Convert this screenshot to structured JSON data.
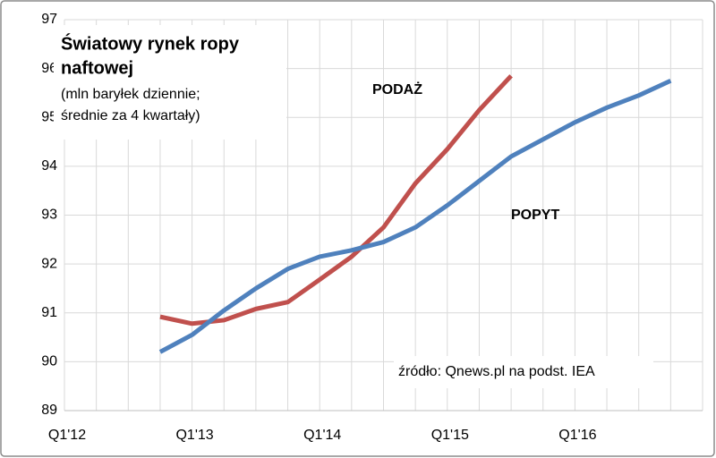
{
  "chart_data": {
    "type": "line",
    "title": [
      "Światowy rynek ropy",
      "naftowej"
    ],
    "subtitle": [
      "(mln baryłek dziennie;",
      "średnie za 4 kwartały)"
    ],
    "annotations": [
      "PODAŻ",
      "POPYT",
      "źródło: Qnews.pl na podst. IEA"
    ],
    "categories": [
      "Q1'12",
      null,
      null,
      null,
      "Q1'13",
      null,
      null,
      null,
      "Q1'14",
      null,
      null,
      null,
      "Q1'15",
      null,
      null,
      null,
      "Q1'16",
      null,
      null,
      null
    ],
    "series": [
      {
        "name": "PODAŻ",
        "color": "#c0504d",
        "values": [
          null,
          null,
          null,
          90.92,
          90.78,
          90.85,
          91.08,
          91.22,
          91.68,
          92.15,
          92.75,
          93.65,
          94.35,
          95.15,
          95.85,
          null,
          null,
          null,
          null,
          null
        ]
      },
      {
        "name": "POPYT",
        "color": "#4f81bd",
        "values": [
          null,
          null,
          null,
          90.2,
          90.55,
          91.05,
          91.5,
          91.9,
          92.15,
          92.28,
          92.45,
          92.75,
          93.2,
          93.7,
          94.2,
          94.55,
          94.9,
          95.2,
          95.45,
          95.75
        ]
      }
    ],
    "ylim": [
      89,
      97
    ],
    "yticks": [
      89,
      90,
      91,
      92,
      93,
      94,
      95,
      96,
      97
    ],
    "grid": true
  }
}
